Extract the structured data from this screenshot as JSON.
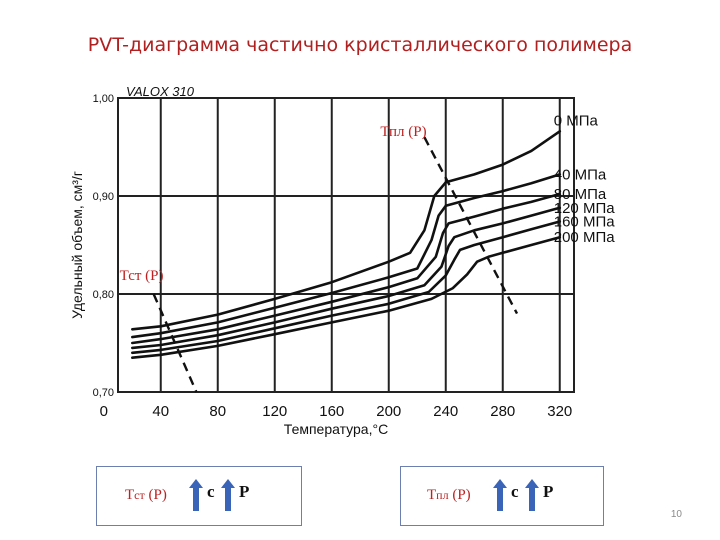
{
  "slide": {
    "title": "PVT-диаграмма частично кристаллического полимера",
    "page_number": "10"
  },
  "chart_data": {
    "type": "line",
    "title": "VALOX 310",
    "xlabel": "Температура,°С",
    "ylabel": "Удельный объем, см³/г",
    "xlim": [
      10,
      330
    ],
    "ylim": [
      0.7,
      1.0
    ],
    "x_ticks": [
      "0",
      "40",
      "80",
      "120",
      "160",
      "200",
      "240",
      "280",
      "320"
    ],
    "y_ticks": [
      "1,00",
      "0,90",
      "0,80",
      "0,70"
    ],
    "grid": true,
    "series": [
      {
        "name": "0 МПа",
        "x": [
          20,
          40,
          80,
          120,
          160,
          200,
          215,
          225,
          232,
          240,
          260,
          280,
          300,
          320
        ],
        "y": [
          0.764,
          0.767,
          0.779,
          0.795,
          0.812,
          0.833,
          0.842,
          0.865,
          0.9,
          0.914,
          0.922,
          0.932,
          0.946,
          0.966
        ]
      },
      {
        "name": "40 МПа",
        "x": [
          20,
          40,
          80,
          120,
          160,
          200,
          220,
          230,
          235,
          240,
          260,
          280,
          300,
          320
        ],
        "y": [
          0.756,
          0.76,
          0.771,
          0.786,
          0.801,
          0.817,
          0.826,
          0.855,
          0.88,
          0.89,
          0.898,
          0.905,
          0.913,
          0.922
        ]
      },
      {
        "name": "80 МПа",
        "x": [
          20,
          40,
          80,
          120,
          160,
          200,
          220,
          233,
          238,
          242,
          260,
          280,
          300,
          320
        ],
        "y": [
          0.75,
          0.754,
          0.764,
          0.778,
          0.792,
          0.807,
          0.816,
          0.838,
          0.862,
          0.872,
          0.879,
          0.887,
          0.894,
          0.902
        ]
      },
      {
        "name": "120 МПа",
        "x": [
          20,
          40,
          80,
          120,
          160,
          200,
          225,
          237,
          242,
          246,
          260,
          280,
          300,
          320
        ],
        "y": [
          0.745,
          0.748,
          0.758,
          0.771,
          0.785,
          0.798,
          0.809,
          0.828,
          0.849,
          0.858,
          0.865,
          0.872,
          0.88,
          0.888
        ]
      },
      {
        "name": "160 МПа",
        "x": [
          20,
          40,
          80,
          120,
          160,
          200,
          228,
          240,
          246,
          250,
          260,
          280,
          300,
          320
        ],
        "y": [
          0.74,
          0.743,
          0.752,
          0.765,
          0.778,
          0.79,
          0.802,
          0.819,
          0.835,
          0.845,
          0.85,
          0.858,
          0.866,
          0.874
        ]
      },
      {
        "name": "200 МПа",
        "x": [
          20,
          40,
          80,
          120,
          160,
          200,
          230,
          245,
          255,
          262,
          270,
          280,
          300,
          320
        ],
        "y": [
          0.735,
          0.738,
          0.747,
          0.759,
          0.771,
          0.783,
          0.795,
          0.806,
          0.82,
          0.833,
          0.838,
          0.842,
          0.85,
          0.858
        ]
      }
    ],
    "annotations": [
      {
        "label": "Тпл (Р)",
        "line": {
          "x": [
            225,
            290
          ],
          "y": [
            0.96,
            0.78
          ]
        }
      },
      {
        "label": "Тст (Р)",
        "line": {
          "x": [
            35,
            65
          ],
          "y": [
            0.8,
            0.7
          ]
        }
      }
    ],
    "colors": {
      "series": "#111111",
      "annotation_text": "#c02020",
      "grid": "#222222"
    }
  },
  "boxes": [
    {
      "label_main": "Т",
      "label_sub": "ст",
      "label_arg": " (Р)",
      "letter1": "с",
      "letter2": "Р"
    },
    {
      "label_main": "Т",
      "label_sub": "пл",
      "label_arg": " (Р)",
      "letter1": "с",
      "letter2": "Р"
    }
  ],
  "colors": {
    "arrow_fill": "#3a64b8",
    "box_border": "#6c7fb0",
    "title": "#b02020"
  }
}
